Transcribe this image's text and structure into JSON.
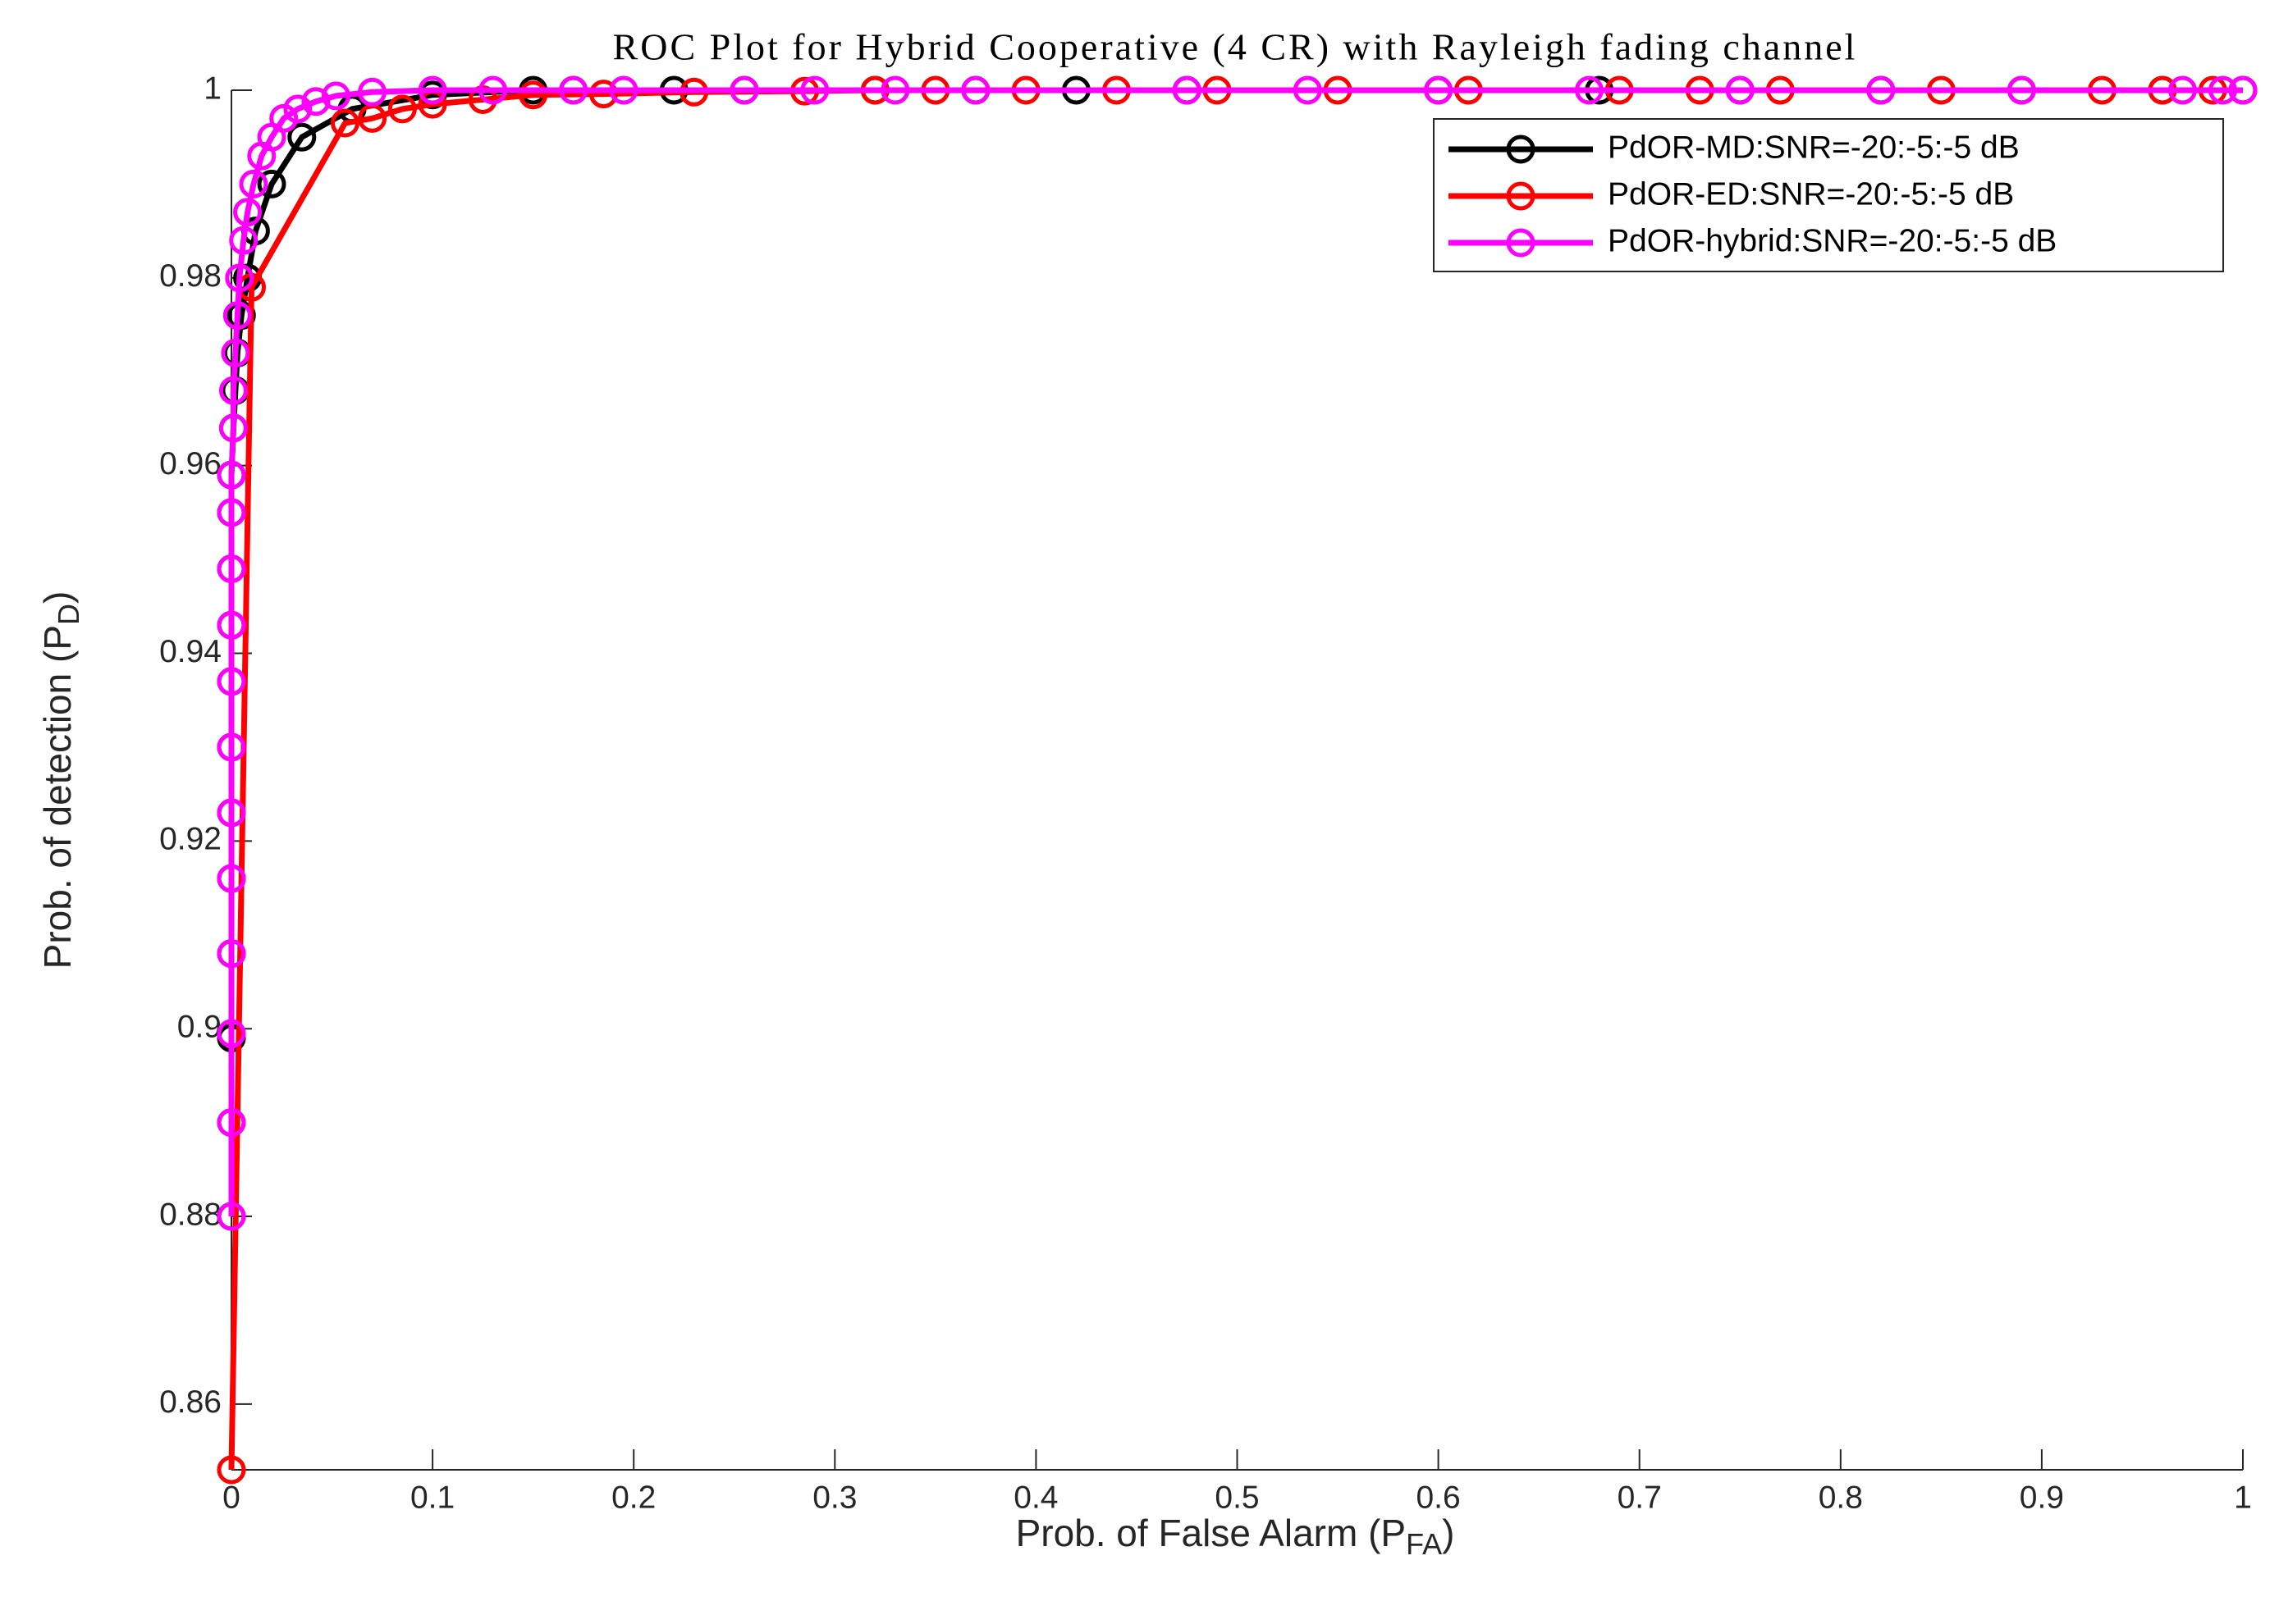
{
  "chart_data": {
    "type": "line",
    "title": "ROC Plot for Hybrid Cooperative (4 CR) with Rayleigh fading channel",
    "xlabel": [
      "Prob. of False Alarm (P",
      "FA",
      ")"
    ],
    "ylabel": [
      "Prob. of detection (P",
      "D",
      ")"
    ],
    "xlim": [
      0,
      1
    ],
    "ylim": [
      0.853,
      1
    ],
    "xticks": [
      0,
      0.1,
      0.2,
      0.3,
      0.4,
      0.5,
      0.6,
      0.7,
      0.8,
      0.9,
      1
    ],
    "yticks": [
      0.86,
      0.88,
      0.9,
      0.92,
      0.94,
      0.96,
      0.98,
      1
    ],
    "legend": "upper right",
    "series": [
      {
        "name": "PdOR-MD:SNR=-20:-5:-5 dB",
        "color": "#000000",
        "x": [
          0,
          0,
          0,
          0,
          0,
          0,
          0,
          0,
          0,
          0,
          0,
          0,
          0.001,
          0.002,
          0.003,
          0.005,
          0.008,
          0.012,
          0.02,
          0.035,
          0.06,
          0.1,
          0.15,
          0.17,
          0.22,
          0.255,
          0.32,
          0.37,
          0.42,
          0.475,
          0.6,
          0.68,
          0.75,
          0.82,
          0.89,
          0.96,
          1
        ],
        "y": [
          0.88,
          0.89,
          0.899,
          0.908,
          0.916,
          0.923,
          0.93,
          0.937,
          0.943,
          0.949,
          0.955,
          0.959,
          0.964,
          0.968,
          0.972,
          0.976,
          0.98,
          0.985,
          0.99,
          0.995,
          0.998,
          0.9995,
          1,
          1,
          1,
          1,
          1,
          1,
          1,
          1,
          1,
          1,
          1,
          1,
          1,
          1,
          1
        ]
      },
      {
        "name": "PdOR-ED:SNR=-20:-5:-5 dB",
        "color": "#ff0000",
        "x": [
          0,
          0.01,
          0.0565,
          0.07,
          0.085,
          0.1,
          0.125,
          0.15,
          0.185,
          0.23,
          0.285,
          0.32,
          0.35,
          0.395,
          0.44,
          0.49,
          0.55,
          0.615,
          0.69,
          0.73,
          0.77,
          0.85,
          0.93,
          0.96,
          0.985,
          1
        ],
        "y": [
          0.853,
          0.979,
          0.9965,
          0.997,
          0.998,
          0.9985,
          0.999,
          0.9995,
          0.9996,
          0.9998,
          0.9999,
          1,
          1,
          1,
          1,
          1,
          1,
          1,
          1,
          1,
          1,
          1,
          1,
          1,
          1,
          1
        ]
      },
      {
        "name": "PdOR-hybrid:SNR=-20:-5:-5 dB",
        "color": "#ff00ff",
        "x": [
          0,
          0,
          0,
          0,
          0,
          0,
          0,
          0,
          0,
          0,
          0,
          0,
          0.001,
          0.001,
          0.002,
          0.003,
          0.004,
          0.006,
          0.008,
          0.011,
          0.015,
          0.02,
          0.026,
          0.033,
          0.042,
          0.052,
          0.07,
          0.1,
          0.13,
          0.17,
          0.195,
          0.255,
          0.29,
          0.33,
          0.37,
          0.475,
          0.535,
          0.6,
          0.675,
          0.75,
          0.82,
          0.89,
          0.97,
          0.99,
          1
        ],
        "y": [
          0.88,
          0.89,
          0.8995,
          0.908,
          0.916,
          0.923,
          0.93,
          0.937,
          0.943,
          0.949,
          0.955,
          0.959,
          0.964,
          0.968,
          0.972,
          0.976,
          0.98,
          0.984,
          0.987,
          0.99,
          0.993,
          0.995,
          0.997,
          0.998,
          0.9988,
          0.9994,
          0.9998,
          1,
          1,
          1,
          1,
          1,
          1,
          1,
          1,
          1,
          1,
          1,
          1,
          1,
          1,
          1,
          1,
          1,
          1
        ]
      }
    ]
  }
}
